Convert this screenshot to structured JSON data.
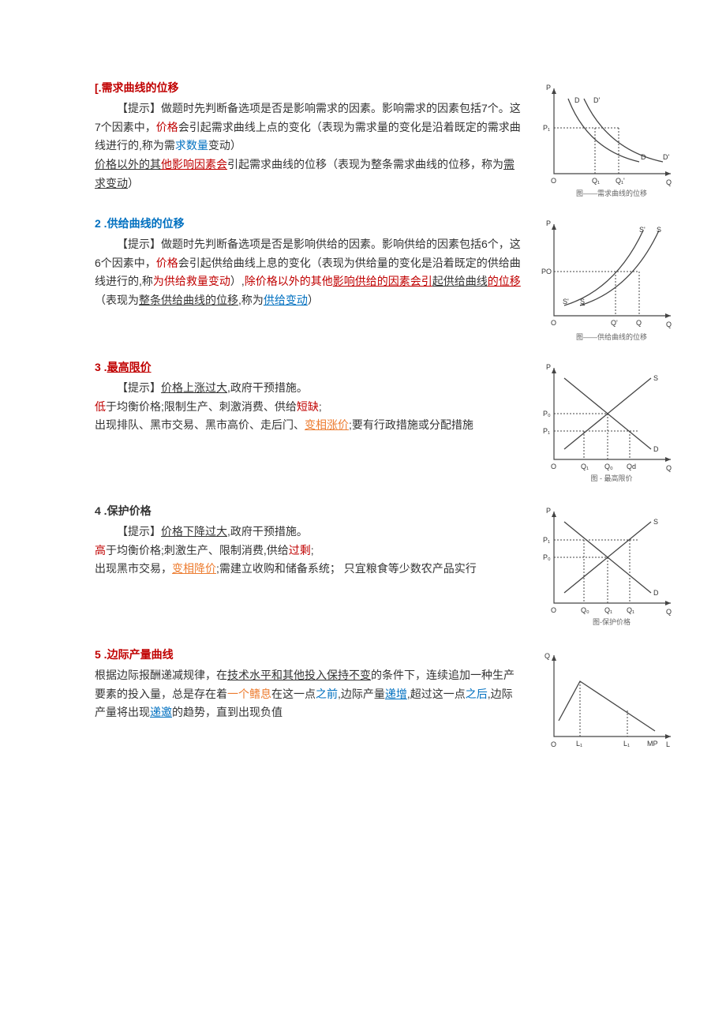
{
  "sections": [
    {
      "heading_prefix": "[.",
      "heading": "需求曲线的位移",
      "heading_color": "#c00000",
      "body": [
        {
          "indent": true,
          "runs": [
            {
              "t": "【提示】做题时先判断备选项是否是影响需求的因素。影响需求的因素包括7个。这7个因素中，"
            },
            {
              "t": "价格",
              "c": "#c00000"
            },
            {
              "t": "会引起需求曲线上点的变化（表现为需求量的变化是沿着既定的需求曲线进行的,称为需"
            },
            {
              "t": "求数量",
              "c": "#0070c0"
            },
            {
              "t": "变动）"
            }
          ]
        },
        {
          "runs": [
            {
              "t": "价格以外的其",
              "u": true
            },
            {
              "t": "他影响因素会",
              "c": "#c00000",
              "u": true
            },
            {
              "t": "引起需求曲线的位移（表现为整条需求曲线的位移，称为"
            },
            {
              "t": "需求变动",
              "u": true
            },
            {
              "t": "）"
            }
          ]
        }
      ],
      "chart": {
        "type": "demand-shift",
        "caption": "图——需求曲线的位移"
      }
    },
    {
      "heading_prefix": "2  .",
      "heading": "供给曲线的位移",
      "heading_color": "#0070c0",
      "body": [
        {
          "indent": true,
          "runs": [
            {
              "t": "【提示】做题时先判断备选项是否是影响供给的因素。影响供给的因素包括6个，这6个因素中，"
            },
            {
              "t": "价格",
              "c": "#c00000"
            },
            {
              "t": "会引起供给曲线上息的变化（表现为供给量的变化是沿着既定的供给曲线进行的,称"
            },
            {
              "t": "为供给救量变动",
              "c": "#c00000"
            },
            {
              "t": "）,"
            },
            {
              "t": "除价格以外的其他",
              "c": "#c00000"
            },
            {
              "t": "影响供给的因素会引",
              "c": "#c00000",
              "u": true
            },
            {
              "t": "起供给曲线",
              "u": true
            },
            {
              "t": "的位移",
              "c": "#c00000",
              "u": true
            },
            {
              "t": "（表现为"
            },
            {
              "t": "整条供给曲线的位移",
              "u": true
            },
            {
              "t": ",称为"
            },
            {
              "t": "供给变动",
              "c": "#0070c0",
              "u": true
            },
            {
              "t": "）"
            }
          ]
        }
      ],
      "chart": {
        "type": "supply-shift",
        "caption": "图——供给曲线的位移"
      }
    },
    {
      "heading_prefix": "3  .",
      "heading": "最高限价",
      "heading_color": "#c00000",
      "heading_underline": true,
      "body": [
        {
          "indent": true,
          "runs": [
            {
              "t": "【提示】"
            },
            {
              "t": "价格上涨过大",
              "u": true
            },
            {
              "t": ",政府干预措施。"
            }
          ]
        },
        {
          "runs": [
            {
              "t": "低",
              "c": "#c00000"
            },
            {
              "t": "于均衡价格;限制生产、刺激消费、供给"
            },
            {
              "t": "短缺",
              "c": "#c00000"
            },
            {
              "t": ";"
            }
          ]
        },
        {
          "runs": [
            {
              "t": "出现排队、黑市交易、黑市高价、走后门、"
            },
            {
              "t": "变相涨价",
              "c": "#ed7d31",
              "u": true
            },
            {
              "t": ";要有行政措施或分配措施"
            }
          ]
        }
      ],
      "chart": {
        "type": "price-ceiling",
        "caption": "图 - 最高限价"
      }
    },
    {
      "heading_prefix": "4  .",
      "heading": "保护价格",
      "heading_color": "#333333",
      "body": [
        {
          "indent": true,
          "runs": [
            {
              "t": "【提示】"
            },
            {
              "t": "价格下降过大",
              "u": true
            },
            {
              "t": ",政府干预措施。"
            }
          ]
        },
        {
          "runs": [
            {
              "t": "高",
              "c": "#c00000"
            },
            {
              "t": "于均衡价格;刺激生产、限制消费,供给"
            },
            {
              "t": "过剩",
              "c": "#c00000"
            },
            {
              "t": ";"
            }
          ]
        },
        {
          "runs": [
            {
              "t": "出现黑市交易，"
            },
            {
              "t": "变相降价",
              "c": "#ed7d31",
              "u": true
            },
            {
              "t": ";需建立收购和储备系统； 只宜粮食等少数农产品实行"
            }
          ]
        }
      ],
      "chart": {
        "type": "price-floor",
        "caption": "图-保护价格"
      }
    },
    {
      "heading_prefix": "5  .",
      "heading": "边际产量曲线",
      "heading_color": "#c00000",
      "body": [
        {
          "runs": [
            {
              "t": "根据边际报酬递减规律，在"
            },
            {
              "t": "技术水平和其他投入保持不变",
              "u": true
            },
            {
              "t": "的条件下，连续追加一种生产要素的投入量，总是存在着"
            },
            {
              "t": "一个鳍息",
              "c": "#ed7d31"
            },
            {
              "t": "在这一点"
            },
            {
              "t": "之前",
              "c": "#0070c0"
            },
            {
              "t": ",边际产量"
            },
            {
              "t": "递增",
              "c": "#0070c0",
              "u": true
            },
            {
              "t": ",超过这一点"
            },
            {
              "t": "之后",
              "c": "#0070c0"
            },
            {
              "t": ",边际产量将出现"
            },
            {
              "t": "递邀",
              "c": "#0070c0",
              "u": true
            },
            {
              "t": "的趋势，直到出现负值"
            }
          ]
        }
      ],
      "chart": {
        "type": "marginal-product",
        "caption": ""
      }
    }
  ],
  "colors": {
    "axis": "#444444",
    "text": "#333333",
    "bg": "#ffffff"
  }
}
